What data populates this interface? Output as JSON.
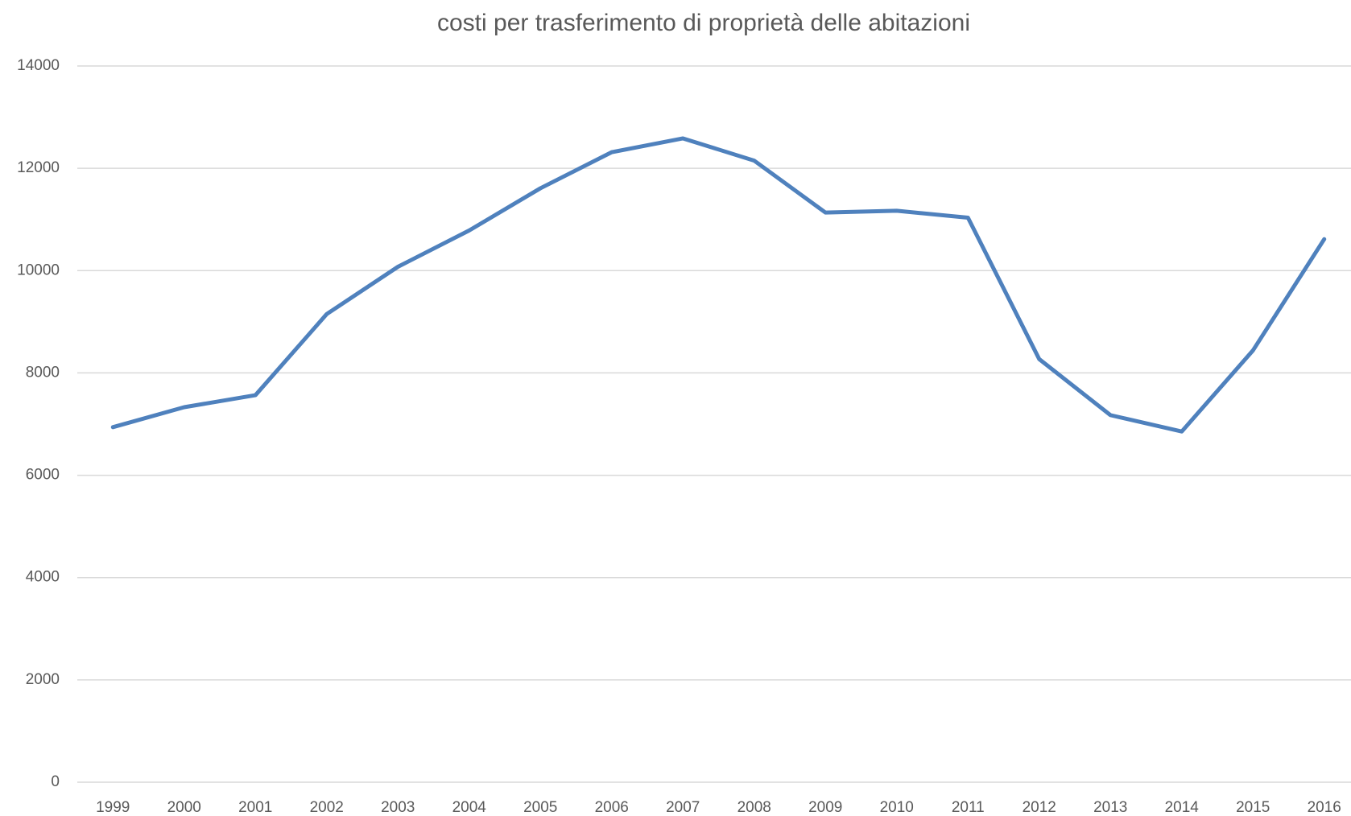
{
  "chart_data": {
    "type": "line",
    "title": "costi per trasferimento di proprietà  delle abitazioni",
    "categories": [
      "1999",
      "2000",
      "2001",
      "2002",
      "2003",
      "2004",
      "2005",
      "2006",
      "2007",
      "2008",
      "2009",
      "2010",
      "2011",
      "2012",
      "2013",
      "2014",
      "2015",
      "2016"
    ],
    "series": [
      {
        "color": "#4f81bd",
        "values": [
          6940,
          7330,
          7565,
          9150,
          10075,
          10785,
          11610,
          12315,
          12585,
          12150,
          11135,
          11170,
          11035,
          8270,
          7175,
          6855,
          8440,
          10615
        ]
      }
    ],
    "ylim": [
      0,
      14000
    ],
    "yticks": [
      0,
      2000,
      4000,
      6000,
      8000,
      10000,
      12000,
      14000
    ],
    "grid": true
  }
}
